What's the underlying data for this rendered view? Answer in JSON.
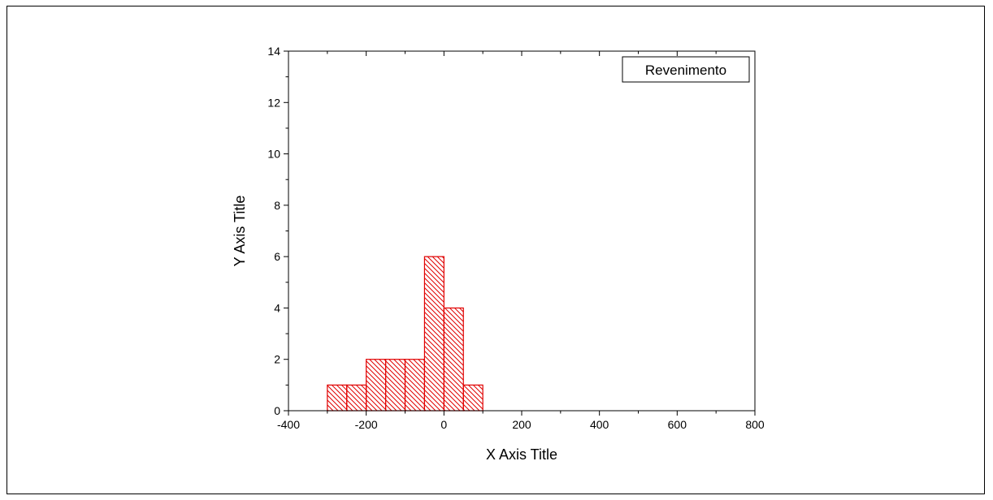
{
  "chart_data": {
    "type": "bar",
    "subtype": "histogram",
    "bin_width": 50,
    "bins": [
      {
        "start": -300,
        "end": -250,
        "count": 1
      },
      {
        "start": -250,
        "end": -200,
        "count": 1
      },
      {
        "start": -200,
        "end": -150,
        "count": 2
      },
      {
        "start": -150,
        "end": -100,
        "count": 2
      },
      {
        "start": -100,
        "end": -50,
        "count": 2
      },
      {
        "start": -50,
        "end": 0,
        "count": 6
      },
      {
        "start": 0,
        "end": 50,
        "count": 4
      },
      {
        "start": 50,
        "end": 100,
        "count": 1
      }
    ],
    "xlabel": "X Axis Title",
    "ylabel": "Y Axis Title",
    "xlim": [
      -400,
      800
    ],
    "ylim": [
      0,
      14
    ],
    "xticks": [
      -400,
      -200,
      0,
      200,
      400,
      600,
      800
    ],
    "yticks": [
      0,
      2,
      4,
      6,
      8,
      10,
      12,
      14
    ],
    "grid": false,
    "legend": {
      "entries": [
        "Revenimento"
      ],
      "placement": "top-right"
    },
    "colors": {
      "bar_edge": "#e00000",
      "bar_hatch": "#e00000",
      "axis": "#000000"
    }
  }
}
